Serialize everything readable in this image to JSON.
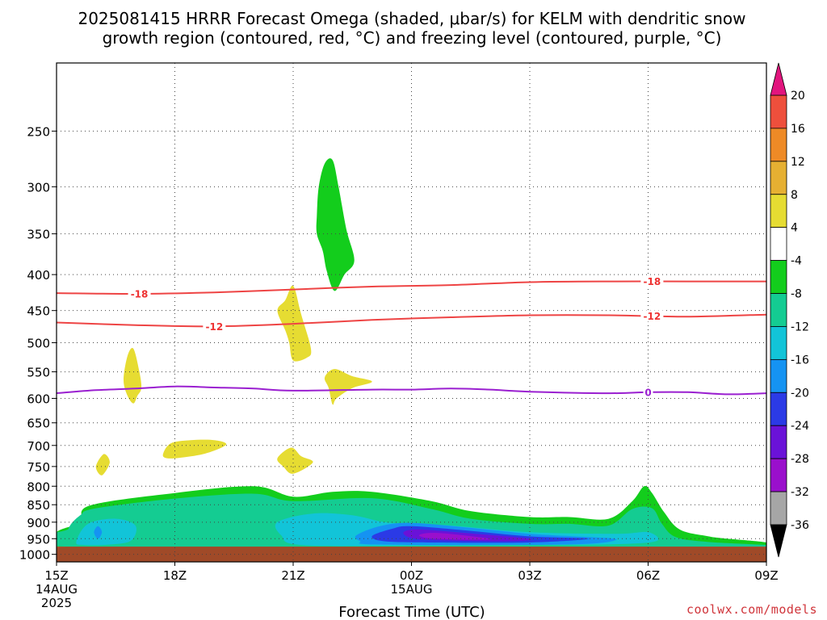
{
  "title_line1": "2025081415 HRRR Forecast Omega (shaded, μbar/s) for KELM with dendritic snow",
  "title_line2": "growth region (contoured, red, °C) and freezing level (contoured, purple, °C)",
  "credit": "coolwx.com/models",
  "chart_data": {
    "type": "heatmap",
    "title": "2025081415 HRRR Forecast Omega (shaded, μbar/s) for KELM with dendritic snow growth region (contoured, red, °C) and freezing level (contoured, purple, °C)",
    "xlabel": "Forecast Time (UTC)",
    "ylabel": "",
    "x_range_hours": [
      0,
      18
    ],
    "y_range_hPa": [
      1025,
      200
    ],
    "y_scale": "log",
    "x_ticks": [
      {
        "hour": 0,
        "label": "15Z",
        "sub1": "14AUG",
        "sub2": "2025"
      },
      {
        "hour": 3,
        "label": "18Z",
        "sub1": "",
        "sub2": ""
      },
      {
        "hour": 6,
        "label": "21Z",
        "sub1": "",
        "sub2": ""
      },
      {
        "hour": 9,
        "label": "00Z",
        "sub1": "15AUG",
        "sub2": ""
      },
      {
        "hour": 12,
        "label": "03Z",
        "sub1": "",
        "sub2": ""
      },
      {
        "hour": 15,
        "label": "06Z",
        "sub1": "",
        "sub2": ""
      },
      {
        "hour": 18,
        "label": "09Z",
        "sub1": "",
        "sub2": ""
      }
    ],
    "y_ticks": [
      1000,
      950,
      900,
      850,
      800,
      750,
      700,
      650,
      600,
      550,
      500,
      450,
      400,
      350,
      300,
      250
    ],
    "grid": true,
    "surface_level_hPa": 975,
    "surface_color": "#a04a28",
    "colorbar": {
      "levels": [
        -36,
        -32,
        -28,
        -24,
        -20,
        -16,
        -12,
        -8,
        -4,
        4,
        8,
        12,
        16,
        20
      ],
      "under_color": "#000000",
      "over_color": "#e2157e",
      "bins": [
        {
          "lo": -36,
          "hi": -32,
          "color": "#a6a6a6"
        },
        {
          "lo": -32,
          "hi": -28,
          "color": "#9a0fcc"
        },
        {
          "lo": -28,
          "hi": -24,
          "color": "#6a12d8"
        },
        {
          "lo": -24,
          "hi": -20,
          "color": "#2b3ae6"
        },
        {
          "lo": -20,
          "hi": -16,
          "color": "#1593f2"
        },
        {
          "lo": -16,
          "hi": -12,
          "color": "#12c4d8"
        },
        {
          "lo": -12,
          "hi": -8,
          "color": "#14cc92"
        },
        {
          "lo": -8,
          "hi": -4,
          "color": "#13cd1c"
        },
        {
          "lo": -4,
          "hi": 4,
          "color": "#ffffff"
        },
        {
          "lo": 4,
          "hi": 8,
          "color": "#e6dc32"
        },
        {
          "lo": 8,
          "hi": 12,
          "color": "#e6b032"
        },
        {
          "lo": 12,
          "hi": 16,
          "color": "#ee8a26"
        },
        {
          "lo": 16,
          "hi": 20,
          "color": "#ee4f3c"
        }
      ]
    },
    "shaded_regions": [
      {
        "bin": "-8..-4",
        "color": "#13cd1c",
        "points": [
          [
            0.6,
            900
          ],
          [
            0.85,
            852
          ],
          [
            3,
            818
          ],
          [
            5,
            800
          ],
          [
            6,
            828
          ],
          [
            7,
            815
          ],
          [
            8,
            815
          ],
          [
            9.5,
            840
          ],
          [
            10.5,
            868
          ],
          [
            12,
            885
          ],
          [
            13,
            885
          ],
          [
            14,
            890
          ],
          [
            14.6,
            840
          ],
          [
            14.9,
            800
          ],
          [
            15.1,
            818
          ],
          [
            15.4,
            870
          ],
          [
            15.8,
            922
          ],
          [
            16.5,
            942
          ],
          [
            17,
            950
          ],
          [
            18,
            962
          ],
          [
            18,
            975
          ],
          [
            0,
            975
          ],
          [
            0,
            930
          ]
        ]
      },
      {
        "bin": "-12..-8",
        "color": "#14cc92",
        "points": [
          [
            0.3,
            920
          ],
          [
            0.6,
            880
          ],
          [
            1,
            860
          ],
          [
            3,
            833
          ],
          [
            5,
            820
          ],
          [
            6,
            840
          ],
          [
            8,
            832
          ],
          [
            9.5,
            862
          ],
          [
            10.5,
            890
          ],
          [
            12,
            905
          ],
          [
            13,
            905
          ],
          [
            14,
            910
          ],
          [
            14.6,
            862
          ],
          [
            15.1,
            860
          ],
          [
            15.35,
            905
          ],
          [
            15.7,
            945
          ],
          [
            16.5,
            960
          ],
          [
            18,
            970
          ],
          [
            18,
            975
          ],
          [
            0.3,
            975
          ]
        ]
      },
      {
        "bin": "-16..-12",
        "color": "#12c4d8",
        "points": [
          [
            0.5,
            960
          ],
          [
            0.8,
            905
          ],
          [
            1.5,
            890
          ],
          [
            2,
            910
          ],
          [
            1.9,
            955
          ],
          [
            1.4,
            968
          ],
          [
            0.7,
            970
          ]
        ]
      },
      {
        "bin": "-16..-12",
        "color": "#12c4d8",
        "points": [
          [
            5.6,
            900
          ],
          [
            6.5,
            875
          ],
          [
            7.5,
            880
          ],
          [
            8.3,
            900
          ],
          [
            9,
            905
          ],
          [
            10,
            910
          ],
          [
            12,
            930
          ],
          [
            14.2,
            935
          ],
          [
            15,
            930
          ],
          [
            15.2,
            958
          ],
          [
            14,
            968
          ],
          [
            12,
            970
          ],
          [
            9,
            972
          ],
          [
            6.2,
            970
          ],
          [
            5.7,
            940
          ]
        ]
      },
      {
        "bin": "-20..-16",
        "color": "#1593f2",
        "points": [
          [
            0.95,
            930
          ],
          [
            1.05,
            912
          ],
          [
            1.15,
            930
          ],
          [
            1.05,
            950
          ]
        ]
      },
      {
        "bin": "-20..-16",
        "color": "#1593f2",
        "points": [
          [
            7.6,
            940
          ],
          [
            8.2,
            912
          ],
          [
            9,
            902
          ],
          [
            10.5,
            917
          ],
          [
            12,
            935
          ],
          [
            13.5,
            945
          ],
          [
            14.2,
            952
          ],
          [
            13.5,
            966
          ],
          [
            11,
            970
          ],
          [
            8,
            968
          ],
          [
            7.7,
            958
          ]
        ]
      },
      {
        "bin": "-24..-20",
        "color": "#2b3ae6",
        "points": [
          [
            8,
            942
          ],
          [
            8.5,
            920
          ],
          [
            9,
            912
          ],
          [
            10.5,
            926
          ],
          [
            12,
            943
          ],
          [
            13.5,
            950
          ],
          [
            12,
            962
          ],
          [
            9.5,
            962
          ],
          [
            8.3,
            958
          ]
        ]
      },
      {
        "bin": "-28..-24",
        "color": "#6a12d8",
        "points": [
          [
            8.8,
            930
          ],
          [
            9.2,
            922
          ],
          [
            10.5,
            934
          ],
          [
            12,
            950
          ],
          [
            11.5,
            958
          ],
          [
            9.7,
            955
          ],
          [
            9,
            948
          ]
        ]
      },
      {
        "bin": "-32..-28",
        "color": "#9a0fcc",
        "points": [
          [
            9.2,
            938
          ],
          [
            9.6,
            932
          ],
          [
            10.5,
            942
          ],
          [
            11,
            952
          ],
          [
            10.2,
            953
          ],
          [
            9.4,
            948
          ]
        ]
      },
      {
        "bin": "-8..-4",
        "color": "#13cd1c",
        "points": [
          [
            6.6,
            330
          ],
          [
            6.65,
            300
          ],
          [
            6.8,
            278
          ],
          [
            7,
            275
          ],
          [
            7.15,
            300
          ],
          [
            7.35,
            345
          ],
          [
            7.55,
            382
          ],
          [
            7.3,
            400
          ],
          [
            7.05,
            422
          ],
          [
            6.85,
            395
          ],
          [
            6.75,
            370
          ],
          [
            6.6,
            350
          ]
        ]
      },
      {
        "bin": "4..8",
        "color": "#e6dc32",
        "points": [
          [
            1.7,
            565
          ],
          [
            1.8,
            522
          ],
          [
            1.95,
            510
          ],
          [
            2.1,
            550
          ],
          [
            2.15,
            580
          ],
          [
            2.05,
            595
          ],
          [
            1.95,
            610
          ],
          [
            1.8,
            595
          ]
        ]
      },
      {
        "bin": "4..8",
        "color": "#e6dc32",
        "points": [
          [
            1.0,
            750
          ],
          [
            1.2,
            720
          ],
          [
            1.35,
            740
          ],
          [
            1.15,
            772
          ]
        ]
      },
      {
        "bin": "4..8",
        "color": "#e6dc32",
        "points": [
          [
            2.7,
            720
          ],
          [
            2.9,
            695
          ],
          [
            3.4,
            688
          ],
          [
            4.0,
            688
          ],
          [
            4.3,
            698
          ],
          [
            3.8,
            718
          ],
          [
            3.2,
            728
          ],
          [
            2.8,
            730
          ]
        ]
      },
      {
        "bin": "4..8",
        "color": "#e6dc32",
        "points": [
          [
            5.6,
            450
          ],
          [
            5.8,
            435
          ],
          [
            6,
            415
          ],
          [
            6.2,
            455
          ],
          [
            6.45,
            510
          ],
          [
            6.35,
            525
          ],
          [
            6,
            530
          ],
          [
            5.9,
            500
          ],
          [
            5.8,
            480
          ]
        ]
      },
      {
        "bin": "4..8",
        "color": "#e6dc32",
        "points": [
          [
            5.6,
            730
          ],
          [
            5.95,
            705
          ],
          [
            6.2,
            725
          ],
          [
            6.5,
            740
          ],
          [
            6.0,
            768
          ],
          [
            5.75,
            750
          ]
        ]
      },
      {
        "bin": "4..8",
        "color": "#e6dc32",
        "points": [
          [
            6.8,
            560
          ],
          [
            7.05,
            545
          ],
          [
            7.5,
            558
          ],
          [
            8.0,
            568
          ],
          [
            7.5,
            580
          ],
          [
            7.1,
            600
          ],
          [
            7.0,
            612
          ],
          [
            6.9,
            580
          ]
        ]
      }
    ],
    "contours": [
      {
        "name": "-18",
        "color": "#ee4444",
        "label_color": "#ee3333",
        "label": "-18",
        "label_positions": [
          2.1,
          15.1
        ],
        "points": [
          [
            0,
            425
          ],
          [
            2,
            426
          ],
          [
            4,
            424
          ],
          [
            6,
            420
          ],
          [
            8,
            416
          ],
          [
            10,
            414
          ],
          [
            12,
            410
          ],
          [
            14,
            409
          ],
          [
            16,
            409
          ],
          [
            18,
            409
          ]
        ]
      },
      {
        "name": "-12",
        "color": "#ee4444",
        "label_color": "#ee3333",
        "label": "-12",
        "label_positions": [
          4.0,
          15.1
        ],
        "points": [
          [
            0,
            468
          ],
          [
            2,
            472
          ],
          [
            4,
            474
          ],
          [
            6,
            470
          ],
          [
            8,
            464
          ],
          [
            10,
            460
          ],
          [
            12,
            457
          ],
          [
            14,
            457
          ],
          [
            16,
            459
          ],
          [
            18,
            456
          ]
        ]
      },
      {
        "name": "0",
        "color": "#9a1fd0",
        "label_color": "#9a1fd0",
        "label": "0",
        "label_positions": [
          15.0
        ],
        "points": [
          [
            0,
            590
          ],
          [
            1,
            584
          ],
          [
            2,
            581
          ],
          [
            3,
            577
          ],
          [
            4,
            579
          ],
          [
            5,
            581
          ],
          [
            6,
            585
          ],
          [
            8,
            583
          ],
          [
            9,
            583
          ],
          [
            10,
            581
          ],
          [
            11,
            583
          ],
          [
            12,
            587
          ],
          [
            14,
            590
          ],
          [
            15,
            588
          ],
          [
            16,
            588
          ],
          [
            17,
            592
          ],
          [
            18,
            590
          ]
        ]
      }
    ]
  }
}
